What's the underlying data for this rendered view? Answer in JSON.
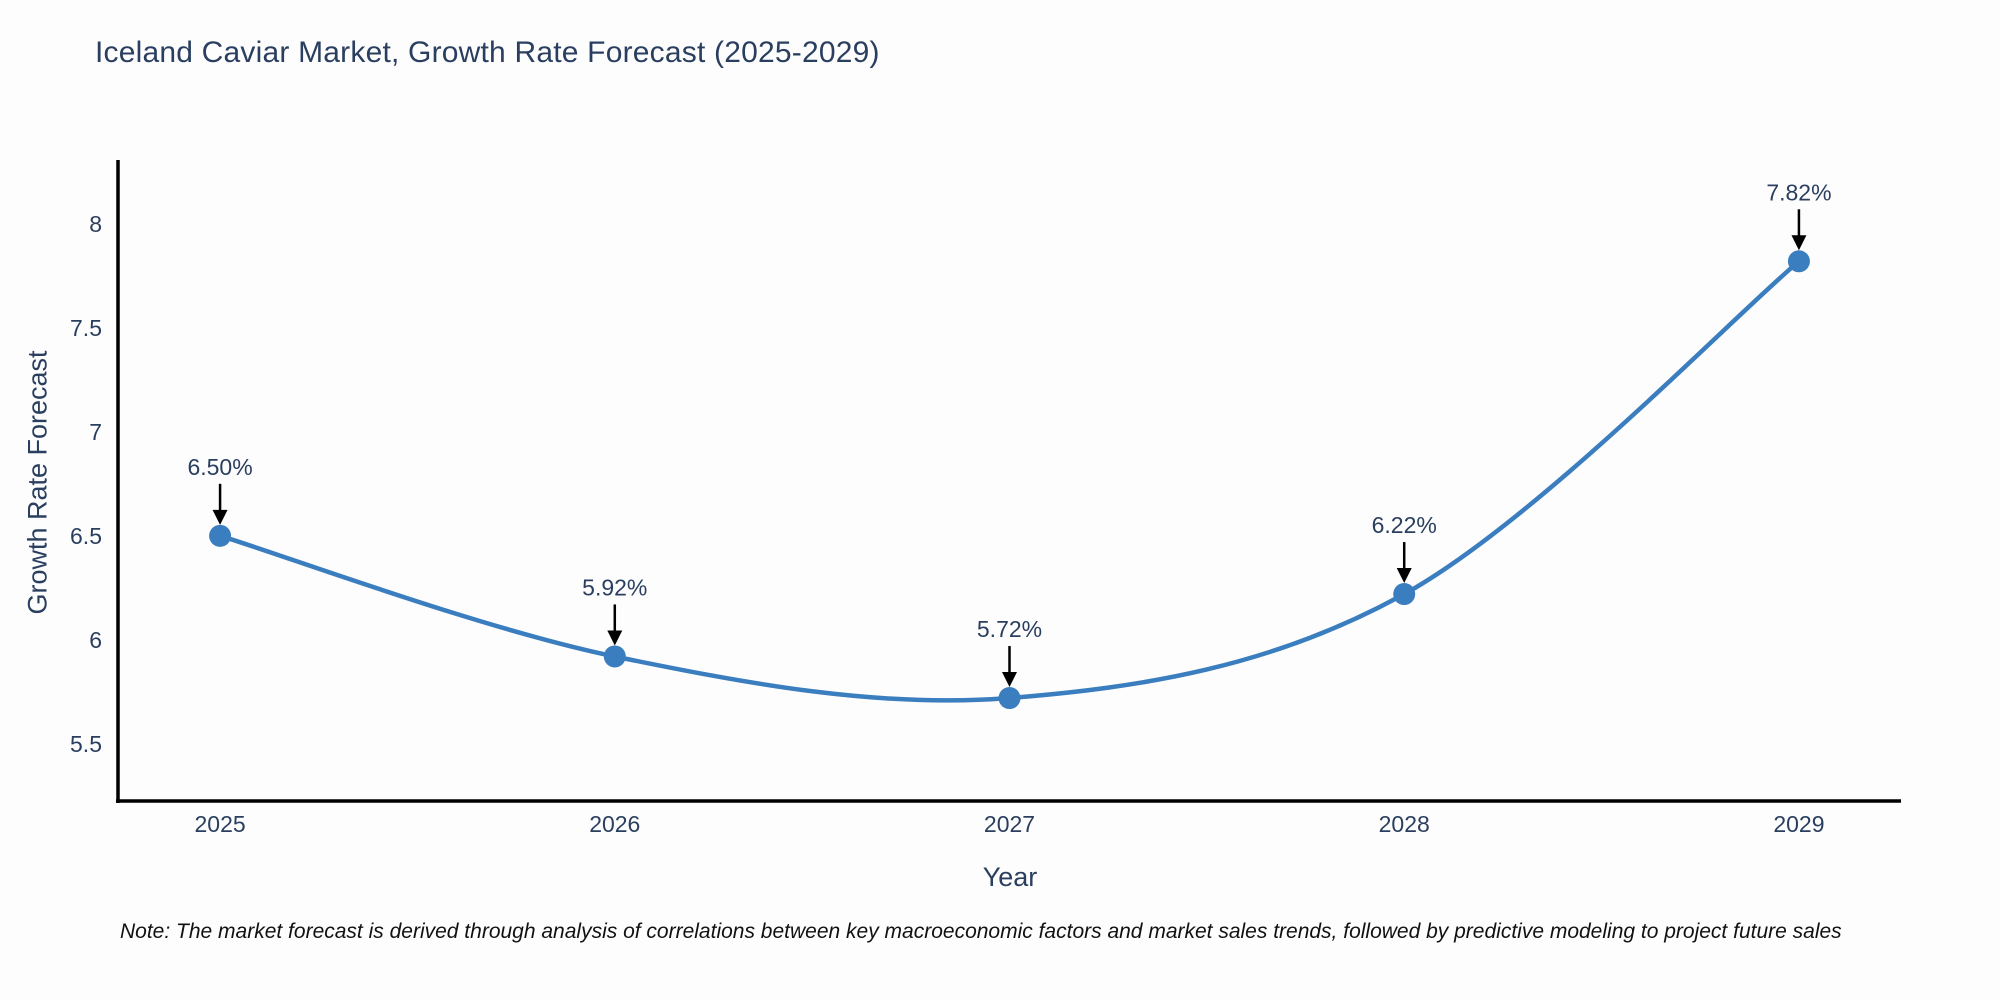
{
  "chart_data": {
    "type": "line",
    "title": "Iceland Caviar Market, Growth Rate Forecast (2025-2029)",
    "xlabel": "Year",
    "ylabel": "Growth Rate Forecast",
    "categories": [
      "2025",
      "2026",
      "2027",
      "2028",
      "2029"
    ],
    "series": [
      {
        "name": "Growth Rate Forecast",
        "values": [
          6.5,
          5.92,
          5.72,
          6.22,
          7.82
        ],
        "point_labels": [
          "6.50%",
          "5.92%",
          "5.72%",
          "6.22%",
          "7.82%"
        ]
      }
    ],
    "yticks": [
      5.5,
      6,
      6.5,
      7,
      7.5,
      8
    ],
    "ylim": [
      5.225,
      8.307
    ],
    "grid": false,
    "legend_position": "none",
    "line_shape": "spline",
    "annotations_have_arrows": true,
    "note": "Note: The market forecast is derived through analysis of correlations between key macroeconomic factors and market sales trends, followed by predictive modeling to project future sales",
    "colors": {
      "line": "#3a7ebf",
      "marker": "#3a7ebf",
      "arrow": "#000000",
      "axis_line": "#000000",
      "text": "#2a3f5f",
      "note_text": "#111111",
      "background": "#fdfdfd"
    }
  }
}
